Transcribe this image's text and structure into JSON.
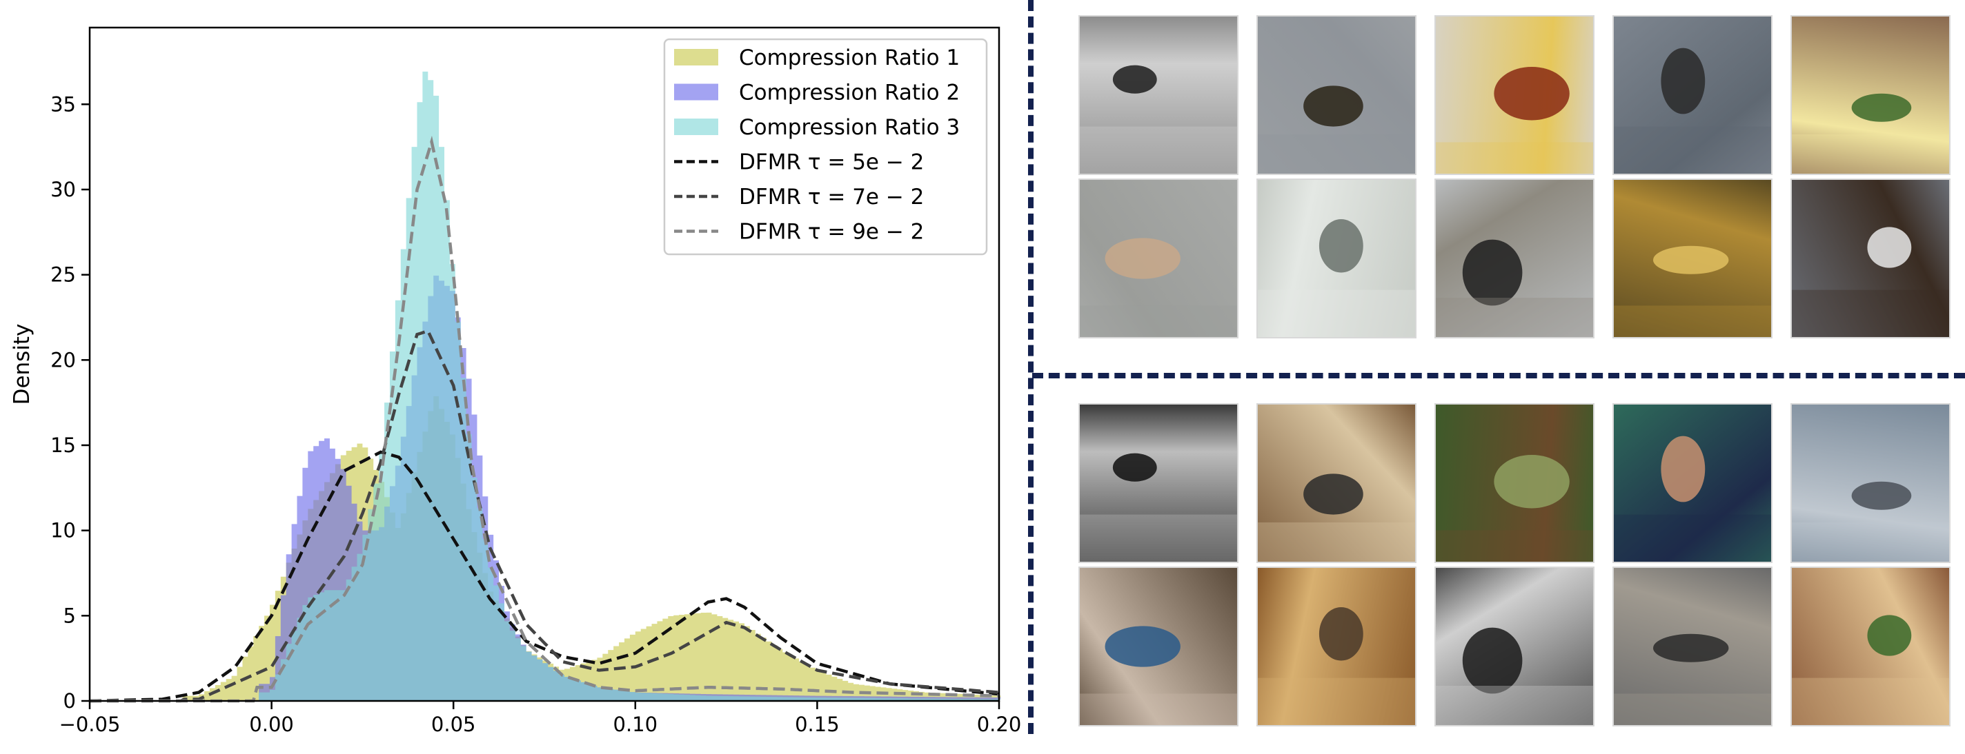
{
  "chart_data": {
    "type": "area",
    "xlabel": "",
    "ylabel": "Density",
    "xlim": [
      -0.05,
      0.2
    ],
    "ylim": [
      0,
      39.5
    ],
    "x_ticks": [
      "−0.05",
      "0.00",
      "0.05",
      "0.10",
      "0.15",
      "0.20"
    ],
    "x_tick_values": [
      -0.05,
      0.0,
      0.05,
      0.1,
      0.15,
      0.2
    ],
    "y_ticks": [
      0,
      5,
      10,
      15,
      20,
      25,
      30,
      35
    ],
    "legend_position": "top-right",
    "histograms": [
      {
        "name": "Compression Ratio 1",
        "color": "#c8c84a",
        "x": [
          -0.02,
          -0.01,
          0.0,
          0.01,
          0.02,
          0.025,
          0.03,
          0.035,
          0.04,
          0.045,
          0.05,
          0.055,
          0.06,
          0.07,
          0.08,
          0.09,
          0.1,
          0.11,
          0.12,
          0.13,
          0.14,
          0.15,
          0.16,
          0.18,
          0.2
        ],
        "y": [
          0.3,
          1.5,
          5.5,
          11.0,
          14.5,
          15.2,
          13.0,
          10.0,
          14.0,
          18.0,
          15.5,
          10.5,
          6.5,
          3.0,
          1.8,
          2.5,
          4.0,
          5.0,
          5.2,
          4.5,
          3.0,
          1.8,
          1.0,
          0.5,
          0.3
        ]
      },
      {
        "name": "Compression Ratio 2",
        "color": "#6b6bea",
        "x": [
          0.0,
          0.005,
          0.01,
          0.015,
          0.02,
          0.025,
          0.03,
          0.035,
          0.04,
          0.045,
          0.05,
          0.055,
          0.06,
          0.065,
          0.07,
          0.08,
          0.09,
          0.1,
          0.12,
          0.15,
          0.2
        ],
        "y": [
          1.0,
          9.0,
          14.5,
          15.5,
          13.5,
          10.0,
          10.0,
          14.0,
          20.0,
          25.0,
          24.0,
          18.0,
          10.0,
          5.0,
          3.0,
          1.5,
          0.8,
          0.5,
          0.4,
          0.3,
          0.2
        ]
      },
      {
        "name": "Compression Ratio 3",
        "color": "#7fd6d6",
        "x": [
          0.0,
          0.005,
          0.01,
          0.015,
          0.02,
          0.025,
          0.03,
          0.035,
          0.04,
          0.042,
          0.045,
          0.048,
          0.05,
          0.055,
          0.06,
          0.065,
          0.07,
          0.08,
          0.09,
          0.1,
          0.12,
          0.15,
          0.2
        ],
        "y": [
          0.5,
          3.5,
          6.0,
          6.5,
          6.5,
          9.0,
          14.0,
          24.0,
          34.0,
          37.0,
          36.0,
          30.0,
          25.0,
          14.0,
          8.0,
          4.5,
          3.0,
          1.5,
          0.8,
          0.5,
          0.3,
          0.2,
          0.1
        ]
      }
    ],
    "series": [
      {
        "name": "DFMR τ = 5e − 2",
        "color": "#111111",
        "x": [
          -0.05,
          -0.03,
          -0.02,
          -0.01,
          0.0,
          0.01,
          0.02,
          0.03,
          0.035,
          0.04,
          0.05,
          0.06,
          0.07,
          0.08,
          0.09,
          0.1,
          0.11,
          0.12,
          0.125,
          0.13,
          0.14,
          0.15,
          0.17,
          0.2
        ],
        "y": [
          0.0,
          0.1,
          0.5,
          2.0,
          5.0,
          9.5,
          13.5,
          14.6,
          14.3,
          13.0,
          9.5,
          6.0,
          3.5,
          2.6,
          2.2,
          2.8,
          4.3,
          5.8,
          6.0,
          5.5,
          3.7,
          2.2,
          1.0,
          0.4
        ]
      },
      {
        "name": "DFMR τ = 7e − 2",
        "color": "#444444",
        "x": [
          -0.02,
          0.0,
          0.01,
          0.02,
          0.025,
          0.03,
          0.035,
          0.04,
          0.043,
          0.05,
          0.055,
          0.06,
          0.07,
          0.08,
          0.09,
          0.1,
          0.11,
          0.12,
          0.125,
          0.13,
          0.14,
          0.15,
          0.17,
          0.2
        ],
        "y": [
          0.1,
          2.0,
          5.5,
          8.5,
          11.0,
          14.0,
          18.0,
          21.5,
          21.7,
          18.5,
          13.5,
          9.0,
          4.5,
          2.3,
          1.8,
          2.0,
          2.8,
          4.0,
          4.6,
          4.3,
          3.0,
          1.8,
          1.0,
          0.5
        ]
      },
      {
        "name": "DFMR τ = 9e − 2",
        "color": "#888888",
        "x": [
          0.0,
          0.01,
          0.02,
          0.025,
          0.03,
          0.035,
          0.04,
          0.044,
          0.048,
          0.05,
          0.055,
          0.06,
          0.07,
          0.08,
          0.09,
          0.1,
          0.12,
          0.14,
          0.16,
          0.18,
          0.2
        ],
        "y": [
          0.8,
          4.5,
          6.2,
          8.0,
          13.0,
          21.0,
          30.0,
          32.8,
          29.0,
          25.0,
          14.0,
          8.0,
          3.5,
          1.5,
          0.8,
          0.6,
          0.8,
          0.7,
          0.5,
          0.4,
          0.3
        ]
      }
    ]
  },
  "thumbnails": {
    "top": [
      {
        "name": "thumb-airplane-clouds",
        "palette": [
          "#8d8d8d",
          "#cfcfcf",
          "#1c1c1c"
        ]
      },
      {
        "name": "thumb-airplane-sky",
        "palette": [
          "#9a9ea2",
          "#8f949a",
          "#2a2418"
        ]
      },
      {
        "name": "thumb-donut-bowl",
        "palette": [
          "#d8d2c2",
          "#e6c75a",
          "#8a2a14"
        ]
      },
      {
        "name": "thumb-bird-water",
        "palette": [
          "#7d858f",
          "#5f6872",
          "#2a2a2a"
        ]
      },
      {
        "name": "thumb-flower-vase",
        "palette": [
          "#8a6a50",
          "#f2e6a0",
          "#3c6a2a"
        ]
      },
      {
        "name": "thumb-airplane-moon",
        "palette": [
          "#a8aaa8",
          "#9b9d9a",
          "#c8a88a"
        ]
      },
      {
        "name": "thumb-bathroom-mirror",
        "palette": [
          "#c6cbc5",
          "#e4e8e4",
          "#6a726c"
        ]
      },
      {
        "name": "thumb-surfers-beach",
        "palette": [
          "#b9bcbe",
          "#8e8a80",
          "#1e1e1e"
        ]
      },
      {
        "name": "thumb-boat-sand",
        "palette": [
          "#5a4a22",
          "#b08a34",
          "#e0c060"
        ]
      },
      {
        "name": "thumb-bird-cow",
        "palette": [
          "#6a6e76",
          "#3a2c22",
          "#e8e8e8"
        ]
      }
    ],
    "bottom": [
      {
        "name": "thumb-city-street-bw",
        "palette": [
          "#3a3a3a",
          "#bdbdbd",
          "#0f0f0f"
        ]
      },
      {
        "name": "thumb-people-dining",
        "palette": [
          "#7a5a3a",
          "#d8c4a0",
          "#2a2a2a"
        ]
      },
      {
        "name": "thumb-garden-bench",
        "palette": [
          "#3e5a2a",
          "#6a4a2a",
          "#8fa060"
        ]
      },
      {
        "name": "thumb-kids-game",
        "palette": [
          "#2e6a5a",
          "#1e2a4a",
          "#c89070"
        ]
      },
      {
        "name": "thumb-city-road",
        "palette": [
          "#7a8a9a",
          "#c0c8d0",
          "#4a5058"
        ]
      },
      {
        "name": "thumb-truck-crowd",
        "palette": [
          "#5a4a3a",
          "#c8b8a8",
          "#2a5a8a"
        ]
      },
      {
        "name": "thumb-pizza-table",
        "palette": [
          "#8a5a2a",
          "#d8b070",
          "#4a3a2a"
        ]
      },
      {
        "name": "thumb-group-photo-bw",
        "palette": [
          "#4a4a4a",
          "#cfcfcf",
          "#1a1a1a"
        ]
      },
      {
        "name": "thumb-train-tracks",
        "palette": [
          "#6a6a6a",
          "#a09a90",
          "#2a2a2a"
        ]
      },
      {
        "name": "thumb-food-collage",
        "palette": [
          "#8a5a3a",
          "#e0c090",
          "#3a6a2a"
        ]
      }
    ]
  }
}
